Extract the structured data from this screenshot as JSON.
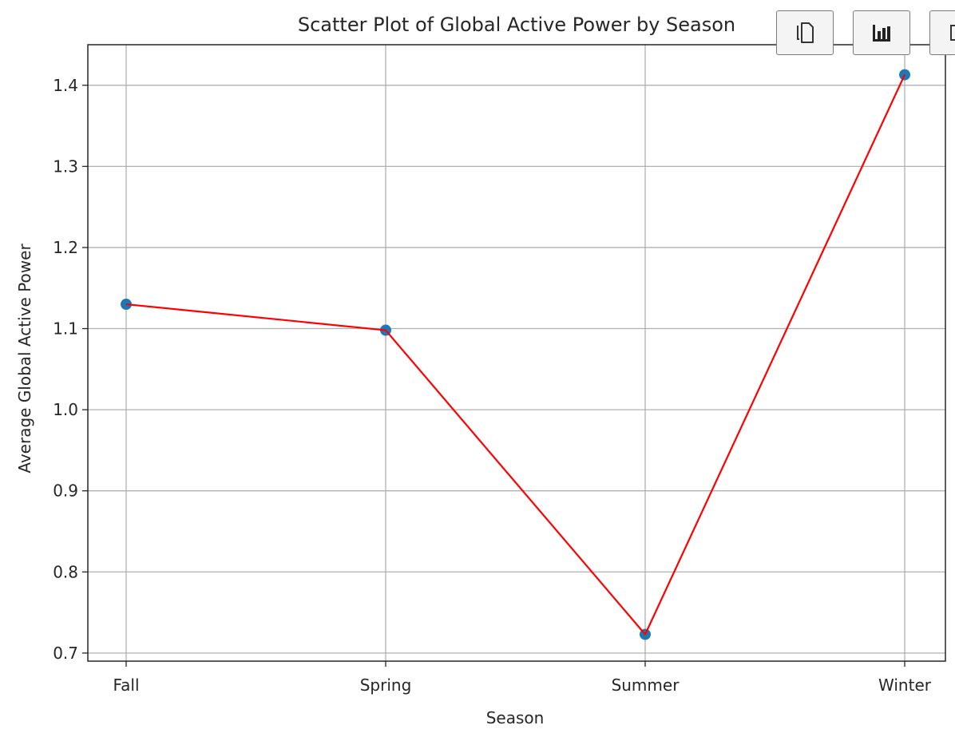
{
  "chart_data": {
    "type": "scatter",
    "title": "Scatter Plot of Global Active Power by Season",
    "xlabel": "Season",
    "ylabel": "Average Global Active Power",
    "categories": [
      "Fall",
      "Spring",
      "Summer",
      "Winter"
    ],
    "values": [
      1.13,
      1.098,
      0.723,
      1.413
    ],
    "ylim": [
      0.69,
      1.45
    ],
    "yticks": [
      "0.7",
      "0.8",
      "0.9",
      "1.0",
      "1.1",
      "1.2",
      "1.3",
      "1.4"
    ],
    "grid": true,
    "point_color": "#1f77b4",
    "line_color": "#ff0000"
  },
  "toolbar": {
    "buttons": [
      {
        "icon": "copy-icon"
      },
      {
        "icon": "bar-chart-icon"
      },
      {
        "icon": "open-in-new-icon"
      }
    ]
  }
}
